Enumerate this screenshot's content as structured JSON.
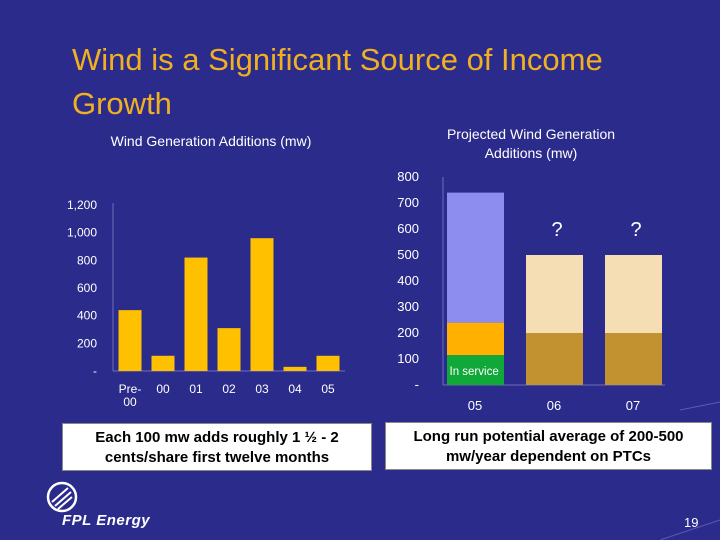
{
  "slide": {
    "title": "Wind is a Significant Source of Income Growth",
    "note_left": "Each 100 mw adds roughly 1 ½ - 2 cents/share first twelve months",
    "note_right": "Long run potential average of 200-500 mw/year dependent on PTCs",
    "logo_text": "FPL Energy",
    "page_number": "19"
  },
  "colors": {
    "background": "#2b2b8c",
    "title": "#f0b020",
    "bar_yellow": "#ffc000",
    "bar_purple": "#8d8df0",
    "bar_orange": "#ffb000",
    "bar_green": "#10a838",
    "bar_cream": "#f5deb3",
    "bar_tan": "#c39230"
  },
  "chart_data": [
    {
      "type": "bar",
      "title": "Wind Generation Additions (mw)",
      "categories": [
        "Pre-\n00",
        "00",
        "01",
        "02",
        "03",
        "04",
        "05"
      ],
      "values": [
        440,
        110,
        820,
        310,
        960,
        30,
        110
      ],
      "y_ticks": [
        "-",
        "200",
        "400",
        "600",
        "800",
        "1,000",
        "1,200"
      ],
      "ylim": [
        0,
        1200
      ],
      "grid": false,
      "legend": "none"
    },
    {
      "type": "bar",
      "stacked": true,
      "title": "Projected Wind Generation Additions (mw)",
      "categories": [
        "05",
        "06",
        "07"
      ],
      "series": [
        {
          "segments": [
            {
              "value": 115,
              "color": "#10a838",
              "label": "In service"
            },
            {
              "value": 125,
              "color": "#ffb000"
            },
            {
              "value": 500,
              "color": "#8d8df0"
            }
          ]
        },
        {
          "segments": [
            {
              "value": 200,
              "color": "#c39230"
            },
            {
              "value": 300,
              "color": "#f5deb3"
            }
          ]
        },
        {
          "segments": [
            {
              "value": 200,
              "color": "#c39230"
            },
            {
              "value": 300,
              "color": "#f5deb3"
            }
          ]
        }
      ],
      "markers": [
        "",
        "?",
        "?"
      ],
      "y_ticks": [
        "-",
        "100",
        "200",
        "300",
        "400",
        "500",
        "600",
        "700",
        "800"
      ],
      "ylim": [
        0,
        800
      ],
      "grid": false,
      "legend": "none"
    }
  ]
}
